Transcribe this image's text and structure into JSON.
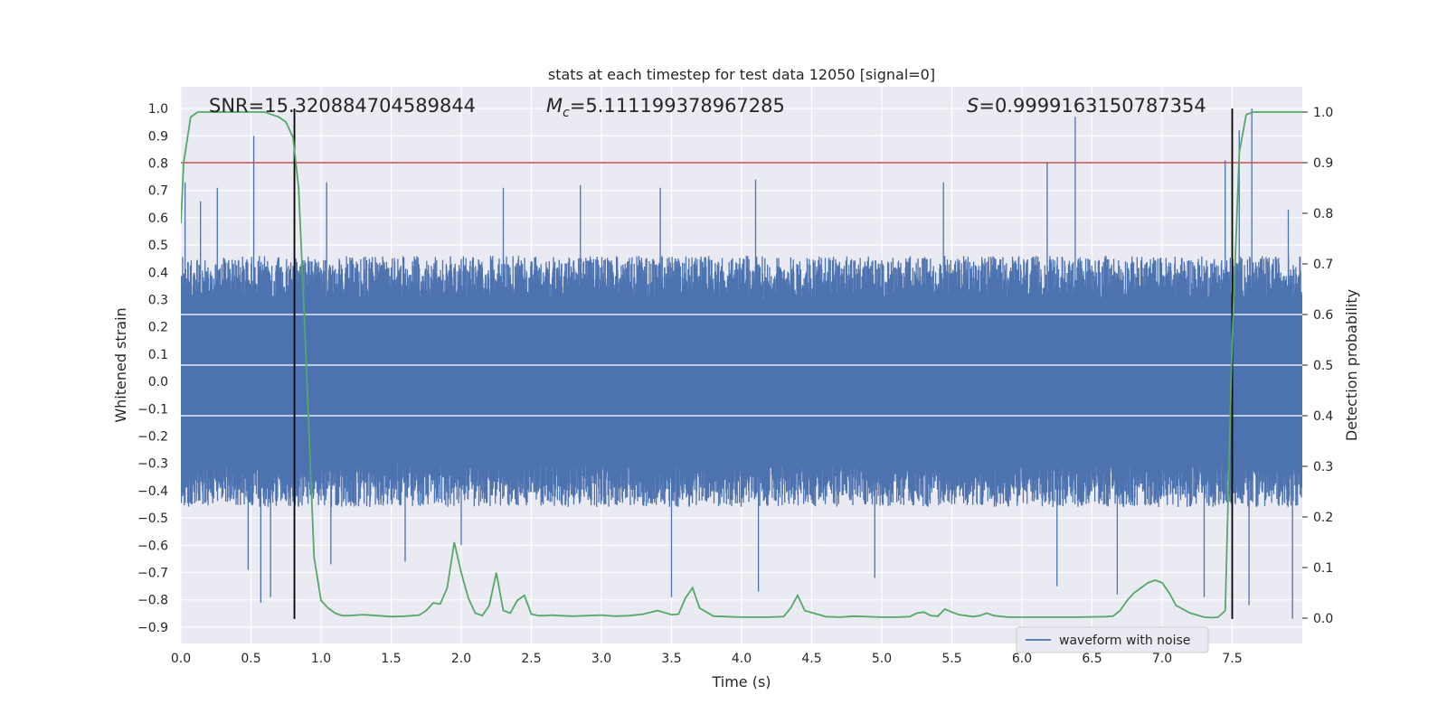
{
  "chart_data": {
    "type": "line",
    "title": "stats at each timestep for test data 12050 [signal=0]",
    "xlabel": "Time (s)",
    "ylabel": "Whitened strain",
    "y2label": "Detection probability",
    "xlim": [
      0.0,
      8.0
    ],
    "ylim": [
      -0.96,
      1.08
    ],
    "y2lim": [
      -0.05,
      1.05
    ],
    "x_ticks": [
      0.0,
      0.5,
      1.0,
      1.5,
      2.0,
      2.5,
      3.0,
      3.5,
      4.0,
      4.5,
      5.0,
      5.5,
      6.0,
      6.5,
      7.0,
      7.5
    ],
    "x_tick_labels": [
      "0.0",
      "0.5",
      "1.0",
      "1.5",
      "2.0",
      "2.5",
      "3.0",
      "3.5",
      "4.0",
      "4.5",
      "5.0",
      "5.5",
      "6.0",
      "6.5",
      "7.0",
      "7.5"
    ],
    "y_ticks": [
      -0.9,
      -0.8,
      -0.7,
      -0.6,
      -0.5,
      -0.4,
      -0.3,
      -0.2,
      -0.1,
      0.0,
      0.1,
      0.2,
      0.3,
      0.4,
      0.5,
      0.6,
      0.7,
      0.8,
      0.9,
      1.0
    ],
    "y_tick_labels": [
      "−0.9",
      "−0.8",
      "−0.7",
      "−0.6",
      "−0.5",
      "−0.4",
      "−0.3",
      "−0.2",
      "−0.1",
      "0.0",
      "0.1",
      "0.2",
      "0.3",
      "0.4",
      "0.5",
      "0.6",
      "0.7",
      "0.8",
      "0.9",
      "1.0"
    ],
    "y2_ticks": [
      0.0,
      0.1,
      0.2,
      0.3,
      0.4,
      0.5,
      0.6,
      0.7,
      0.8,
      0.9,
      1.0
    ],
    "y2_tick_labels": [
      "0.0",
      "0.1",
      "0.2",
      "0.3",
      "0.4",
      "0.5",
      "0.6",
      "0.7",
      "0.8",
      "0.9",
      "1.0"
    ],
    "grid": true,
    "legend": {
      "placement": "lower-center-right",
      "entries": [
        "waveform with noise"
      ]
    },
    "annotations": {
      "snr": "SNR=15.320884704589844",
      "mc_symbol": "M",
      "mc_subscript": "c",
      "mc_value": "=5.111199378967285",
      "s_symbol": "S",
      "s_value": "=0.9999163150787354"
    },
    "threshold": {
      "axis": "right",
      "value": 0.9,
      "color": "#c44e52"
    },
    "vertical_lines": [
      0.81,
      7.5
    ],
    "series": [
      {
        "name": "waveform with noise",
        "axis": "left",
        "color": "#4c72b0",
        "kind": "noise-envelope",
        "core_amplitude": 0.3,
        "t_range": [
          0.0,
          8.0
        ],
        "upper_peaks": [
          [
            0.03,
            0.73
          ],
          [
            0.14,
            0.66
          ],
          [
            0.26,
            0.71
          ],
          [
            0.52,
            0.9
          ],
          [
            0.82,
            0.45
          ],
          [
            1.04,
            0.73
          ],
          [
            2.3,
            0.71
          ],
          [
            2.85,
            0.72
          ],
          [
            3.42,
            0.71
          ],
          [
            4.1,
            0.74
          ],
          [
            5.44,
            0.73
          ],
          [
            6.18,
            0.8
          ],
          [
            6.38,
            0.97
          ],
          [
            7.45,
            0.81
          ],
          [
            7.55,
            0.92
          ],
          [
            7.64,
            1.0
          ],
          [
            7.9,
            0.63
          ]
        ],
        "lower_peaks": [
          [
            0.48,
            -0.69
          ],
          [
            0.57,
            -0.81
          ],
          [
            0.64,
            -0.79
          ],
          [
            1.07,
            -0.67
          ],
          [
            1.6,
            -0.66
          ],
          [
            2.0,
            -0.6
          ],
          [
            3.5,
            -0.79
          ],
          [
            4.12,
            -0.77
          ],
          [
            4.95,
            -0.72
          ],
          [
            6.25,
            -0.75
          ],
          [
            6.68,
            -0.78
          ],
          [
            7.3,
            -0.79
          ],
          [
            7.62,
            -0.82
          ],
          [
            7.93,
            -0.87
          ]
        ]
      },
      {
        "name": "detection probability",
        "axis": "right",
        "color": "#55a868",
        "x": [
          0.0,
          0.02,
          0.07,
          0.12,
          0.2,
          0.3,
          0.4,
          0.5,
          0.55,
          0.6,
          0.65,
          0.7,
          0.75,
          0.8,
          0.84,
          0.88,
          0.95,
          1.0,
          1.05,
          1.1,
          1.15,
          1.2,
          1.3,
          1.4,
          1.5,
          1.6,
          1.7,
          1.75,
          1.8,
          1.85,
          1.9,
          1.95,
          2.0,
          2.05,
          2.1,
          2.15,
          2.2,
          2.25,
          2.3,
          2.35,
          2.4,
          2.45,
          2.5,
          2.55,
          2.6,
          2.65,
          2.7,
          2.8,
          2.9,
          3.0,
          3.1,
          3.2,
          3.3,
          3.4,
          3.5,
          3.55,
          3.6,
          3.65,
          3.7,
          3.8,
          3.9,
          4.0,
          4.1,
          4.2,
          4.3,
          4.35,
          4.4,
          4.45,
          4.6,
          4.7,
          4.8,
          5.0,
          5.1,
          5.2,
          5.25,
          5.3,
          5.35,
          5.4,
          5.45,
          5.5,
          5.55,
          5.6,
          5.65,
          5.7,
          5.75,
          5.8,
          5.9,
          6.0,
          6.2,
          6.4,
          6.6,
          6.65,
          6.7,
          6.75,
          6.8,
          6.85,
          6.9,
          6.95,
          7.0,
          7.05,
          7.1,
          7.2,
          7.3,
          7.35,
          7.4,
          7.45,
          7.5,
          7.55,
          7.6,
          7.65,
          7.7,
          7.8,
          7.9,
          8.0
        ],
        "values": [
          0.78,
          0.9,
          0.99,
          1.0,
          1.0,
          1.0,
          1.0,
          1.0,
          1.0,
          1.0,
          0.995,
          0.99,
          0.98,
          0.95,
          0.85,
          0.6,
          0.12,
          0.035,
          0.02,
          0.01,
          0.005,
          0.005,
          0.007,
          0.005,
          0.003,
          0.004,
          0.006,
          0.015,
          0.03,
          0.028,
          0.06,
          0.15,
          0.09,
          0.04,
          0.01,
          0.005,
          0.025,
          0.09,
          0.015,
          0.01,
          0.035,
          0.045,
          0.008,
          0.005,
          0.005,
          0.006,
          0.005,
          0.004,
          0.005,
          0.006,
          0.004,
          0.005,
          0.008,
          0.015,
          0.007,
          0.008,
          0.04,
          0.06,
          0.02,
          0.004,
          0.003,
          0.002,
          0.002,
          0.002,
          0.003,
          0.02,
          0.045,
          0.015,
          0.003,
          0.002,
          0.004,
          0.002,
          0.002,
          0.003,
          0.01,
          0.012,
          0.005,
          0.004,
          0.018,
          0.012,
          0.007,
          0.005,
          0.003,
          0.005,
          0.01,
          0.005,
          0.002,
          0.002,
          0.002,
          0.002,
          0.003,
          0.004,
          0.015,
          0.035,
          0.05,
          0.06,
          0.07,
          0.075,
          0.07,
          0.05,
          0.025,
          0.01,
          0.002,
          0.001,
          0.002,
          0.015,
          0.55,
          0.92,
          0.995,
          1.0,
          1.0,
          1.0,
          1.0,
          1.0
        ]
      }
    ]
  }
}
